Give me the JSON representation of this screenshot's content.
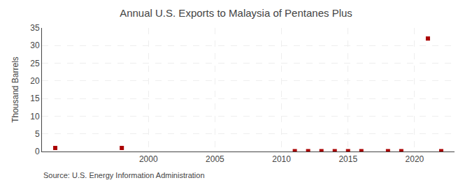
{
  "chart_data": {
    "type": "scatter",
    "title": "Annual U.S. Exports to Malaysia of Pentanes Plus",
    "ylabel": "Thousand Barrels",
    "annotations": [
      "Source: U.S. Energy Information Administration"
    ],
    "x": [
      1993,
      1998,
      2011,
      2012,
      2013,
      2014,
      2015,
      2016,
      2018,
      2019,
      2021,
      2022
    ],
    "values": [
      1.0,
      1.0,
      0.1,
      0.1,
      0.1,
      0.1,
      0.1,
      0.1,
      0.1,
      0.1,
      32.0,
      0.1
    ],
    "color": "#aa0000",
    "marker": "square",
    "xlim": [
      1992,
      2023
    ],
    "ylim": [
      0,
      35
    ],
    "xticks": [
      2000,
      2005,
      2010,
      2015,
      2020
    ],
    "yticks": [
      0,
      5,
      10,
      15,
      20,
      25,
      30,
      35
    ],
    "grid": true
  }
}
